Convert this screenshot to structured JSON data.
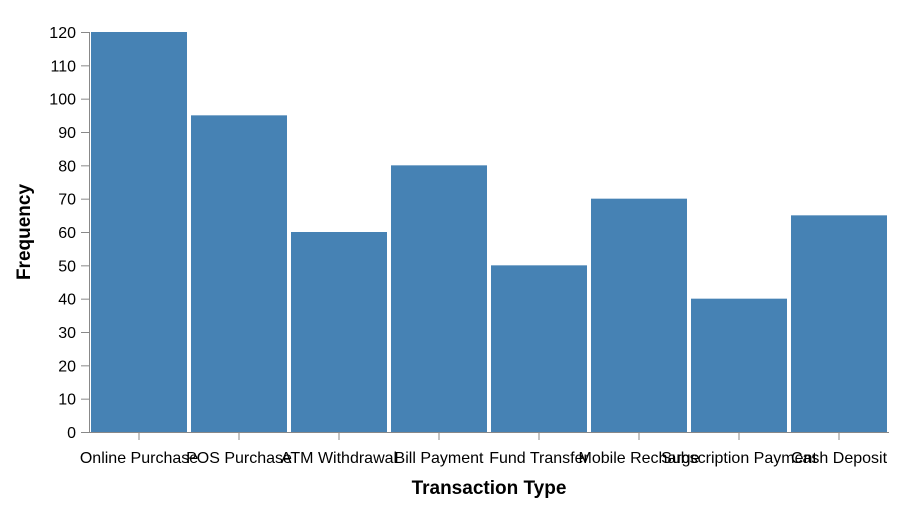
{
  "chart_data": {
    "type": "bar",
    "title": "",
    "xlabel": "Transaction Type",
    "ylabel": "Frequency",
    "categories": [
      "Online Purchase",
      "POS Purchase",
      "ATM Withdrawal",
      "Bill Payment",
      "Fund Transfer",
      "Mobile Recharge",
      "Subscription Payment",
      "Cash Deposit"
    ],
    "values": [
      120,
      95,
      60,
      80,
      50,
      70,
      40,
      65
    ],
    "ylim": [
      0,
      120
    ],
    "yticks": [
      "0",
      "10",
      "20",
      "30",
      "40",
      "50",
      "60",
      "70",
      "80",
      "90",
      "100",
      "110",
      "120"
    ],
    "grid": false,
    "legend": "none",
    "bar_color": "#4682b4",
    "axis_color": "#888888"
  }
}
